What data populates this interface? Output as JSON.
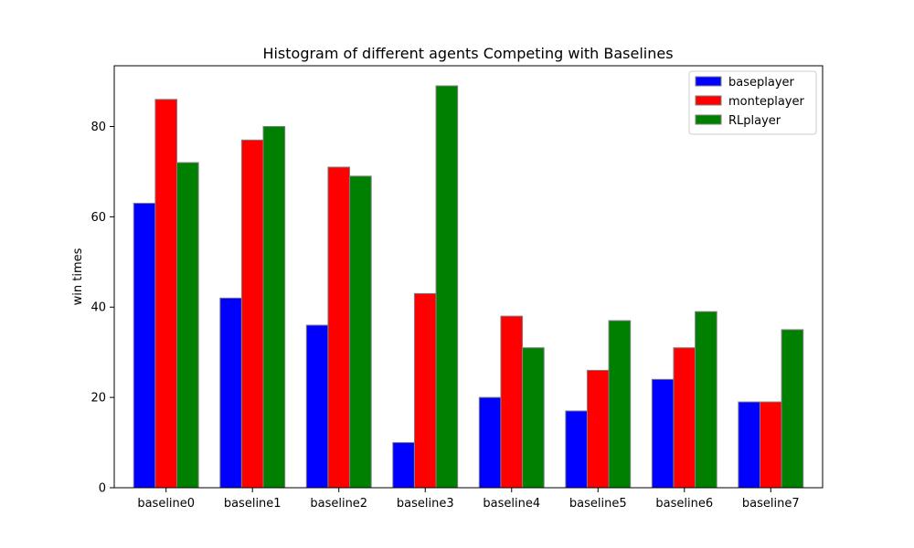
{
  "chart_data": {
    "type": "bar",
    "title": "Histogram of different agents Competing with Baselines",
    "xlabel": "",
    "ylabel": "win times",
    "categories": [
      "baseline0",
      "baseline1",
      "baseline2",
      "baseline3",
      "baseline4",
      "baseline5",
      "baseline6",
      "baseline7"
    ],
    "series": [
      {
        "name": "baseplayer",
        "color": "#0000ff",
        "values": [
          63,
          42,
          36,
          10,
          20,
          17,
          24,
          19
        ]
      },
      {
        "name": "monteplayer",
        "color": "#ff0000",
        "values": [
          86,
          77,
          71,
          43,
          38,
          26,
          31,
          19
        ]
      },
      {
        "name": "RLplayer",
        "color": "#008000",
        "values": [
          72,
          80,
          69,
          89,
          31,
          37,
          39,
          35
        ]
      }
    ],
    "ylim": [
      0,
      93.45
    ],
    "yticks": [
      0,
      20,
      40,
      60,
      80
    ],
    "grid": false,
    "legend_position": "top-right",
    "bar_edge_color": "#808080"
  }
}
